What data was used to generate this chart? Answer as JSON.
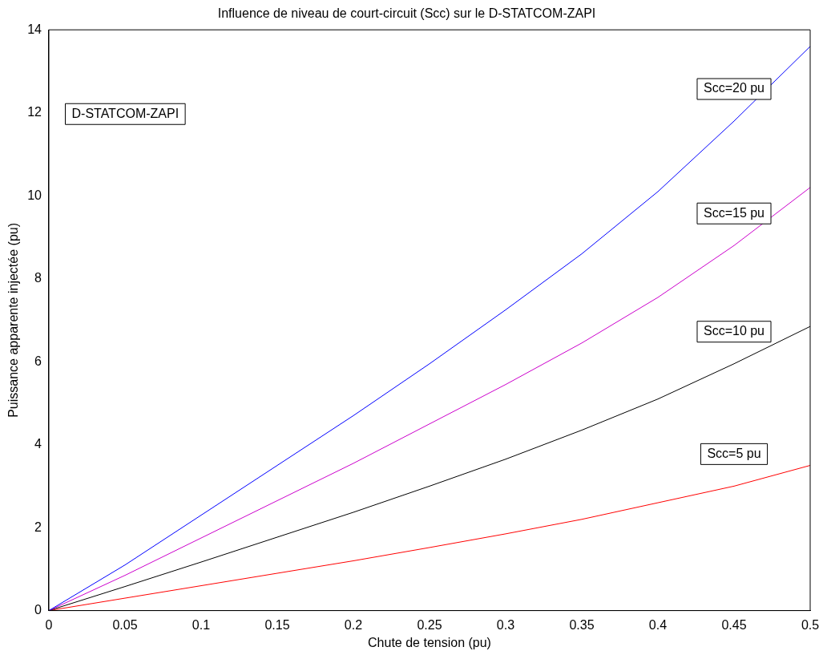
{
  "chart_data": {
    "type": "line",
    "title": "Influence de niveau de court-circuit (Scc) sur le D-STATCOM-ZAPI",
    "xlabel": "Chute de tension (pu)",
    "ylabel": "Puissance apparente injectée (pu)",
    "x": [
      0,
      0.05,
      0.1,
      0.15,
      0.2,
      0.25,
      0.3,
      0.35,
      0.4,
      0.45,
      0.5
    ],
    "series": [
      {
        "name": "Scc=20 pu",
        "color": "#0000ff",
        "values": [
          0,
          1.1,
          2.3,
          3.5,
          4.7,
          5.95,
          7.25,
          8.6,
          10.1,
          11.8,
          13.6
        ]
      },
      {
        "name": "Scc=15 pu",
        "color": "#cc00cc",
        "values": [
          0,
          0.85,
          1.75,
          2.65,
          3.55,
          4.5,
          5.45,
          6.45,
          7.55,
          8.8,
          10.2
        ]
      },
      {
        "name": "Scc=10 pu",
        "color": "#000000",
        "values": [
          0,
          0.58,
          1.17,
          1.77,
          2.37,
          3.0,
          3.65,
          4.35,
          5.1,
          5.95,
          6.85
        ]
      },
      {
        "name": "Scc=5 pu",
        "color": "#ff0000",
        "values": [
          0,
          0.3,
          0.6,
          0.9,
          1.2,
          1.52,
          1.85,
          2.2,
          2.6,
          3.0,
          3.5
        ]
      }
    ],
    "xlim": [
      0,
      0.5
    ],
    "xticks": [
      0,
      0.05,
      0.1,
      0.15,
      0.2,
      0.25,
      0.3,
      0.35,
      0.4,
      0.45,
      0.5
    ],
    "ylim": [
      0,
      14
    ],
    "yticks": [
      0,
      2,
      4,
      6,
      8,
      10,
      12,
      14
    ],
    "grid": false,
    "legend": false,
    "marker": "none",
    "line_style": "solid",
    "annotations": [
      "D-STATCOM-ZAPI"
    ]
  }
}
